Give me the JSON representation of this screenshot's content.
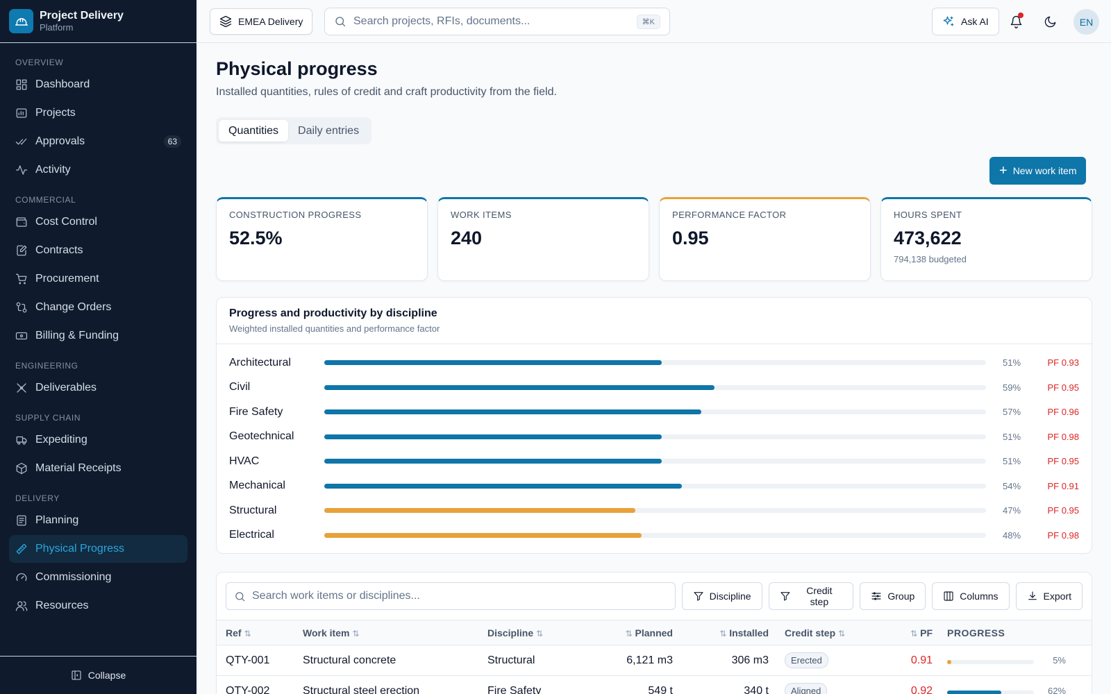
{
  "brand": {
    "title": "Project Delivery",
    "subtitle": "Platform"
  },
  "sidebar": {
    "sections": [
      {
        "label": "OVERVIEW",
        "items": [
          {
            "label": "Dashboard",
            "icon": "dashboard-icon"
          },
          {
            "label": "Projects",
            "icon": "projects-icon"
          },
          {
            "label": "Approvals",
            "icon": "approvals-icon",
            "badge": "63"
          },
          {
            "label": "Activity",
            "icon": "activity-icon"
          }
        ]
      },
      {
        "label": "COMMERCIAL",
        "items": [
          {
            "label": "Cost Control",
            "icon": "wallet-icon"
          },
          {
            "label": "Contracts",
            "icon": "contract-icon"
          },
          {
            "label": "Procurement",
            "icon": "cart-icon"
          },
          {
            "label": "Change Orders",
            "icon": "change-icon"
          },
          {
            "label": "Billing & Funding",
            "icon": "banknote-icon"
          }
        ]
      },
      {
        "label": "ENGINEERING",
        "items": [
          {
            "label": "Deliverables",
            "icon": "drafting-icon"
          }
        ]
      },
      {
        "label": "SUPPLY CHAIN",
        "items": [
          {
            "label": "Expediting",
            "icon": "truck-icon"
          },
          {
            "label": "Material Receipts",
            "icon": "package-icon"
          }
        ]
      },
      {
        "label": "DELIVERY",
        "items": [
          {
            "label": "Planning",
            "icon": "planning-icon"
          },
          {
            "label": "Physical Progress",
            "icon": "ruler-icon",
            "active": true
          },
          {
            "label": "Commissioning",
            "icon": "gauge-icon"
          },
          {
            "label": "Resources",
            "icon": "users-icon"
          }
        ]
      }
    ],
    "collapse_label": "Collapse"
  },
  "topbar": {
    "workspace": "EMEA Delivery",
    "search_placeholder": "Search projects, RFIs, documents...",
    "shortcut": "⌘K",
    "ask_ai": "Ask AI",
    "avatar": "EN"
  },
  "page": {
    "title": "Physical progress",
    "subtitle": "Installed quantities, rules of credit and craft productivity from the field.",
    "tabs": [
      "Quantities",
      "Daily entries"
    ],
    "new_button": "New work item"
  },
  "kpis": [
    {
      "label": "CONSTRUCTION PROGRESS",
      "value": "52.5%",
      "sub": ""
    },
    {
      "label": "WORK ITEMS",
      "value": "240",
      "sub": ""
    },
    {
      "label": "PERFORMANCE FACTOR",
      "value": "0.95",
      "sub": "",
      "warn": true
    },
    {
      "label": "HOURS SPENT",
      "value": "473,622",
      "sub": "794,138 budgeted"
    }
  ],
  "discipline_panel": {
    "title": "Progress and productivity by discipline",
    "subtitle": "Weighted installed quantities and performance factor",
    "rows": [
      {
        "name": "Architectural",
        "progress": 51,
        "pct": "51%",
        "pf": "PF 0.93"
      },
      {
        "name": "Civil",
        "progress": 59,
        "pct": "59%",
        "pf": "PF 0.95"
      },
      {
        "name": "Fire Safety",
        "progress": 57,
        "pct": "57%",
        "pf": "PF 0.96"
      },
      {
        "name": "Geotechnical",
        "progress": 51,
        "pct": "51%",
        "pf": "PF 0.98"
      },
      {
        "name": "HVAC",
        "progress": 51,
        "pct": "51%",
        "pf": "PF 0.95"
      },
      {
        "name": "Mechanical",
        "progress": 54,
        "pct": "54%",
        "pf": "PF 0.91"
      },
      {
        "name": "Structural",
        "progress": 47,
        "pct": "47%",
        "pf": "PF 0.95",
        "warn": true
      },
      {
        "name": "Electrical",
        "progress": 48,
        "pct": "48%",
        "pf": "PF 0.98",
        "warn": true
      }
    ]
  },
  "table": {
    "search_placeholder": "Search work items or disciplines...",
    "tools": [
      "Discipline",
      "Credit step",
      "Group",
      "Columns",
      "Export"
    ],
    "columns": {
      "ref": "Ref",
      "item": "Work item",
      "discipline": "Discipline",
      "planned": "Planned",
      "installed": "Installed",
      "step": "Credit step",
      "pf": "PF",
      "progress": "PROGRESS"
    },
    "rows": [
      {
        "ref": "QTY-001",
        "item": "Structural concrete",
        "discipline": "Structural",
        "planned": "6,121 m3",
        "installed": "306 m3",
        "step": "Erected",
        "pf": "0.91",
        "progress": 5,
        "pct": "5%"
      },
      {
        "ref": "QTY-002",
        "item": "Structural steel erection",
        "discipline": "Fire Safety",
        "planned": "549 t",
        "installed": "340 t",
        "step": "Aligned",
        "pf": "0.92",
        "progress": 62,
        "pct": "62%"
      }
    ]
  },
  "colors": {
    "accent": "#0e76a8",
    "warning": "#e8a23a",
    "danger": "#dc2626",
    "sidebar": "#0f1b2d"
  }
}
